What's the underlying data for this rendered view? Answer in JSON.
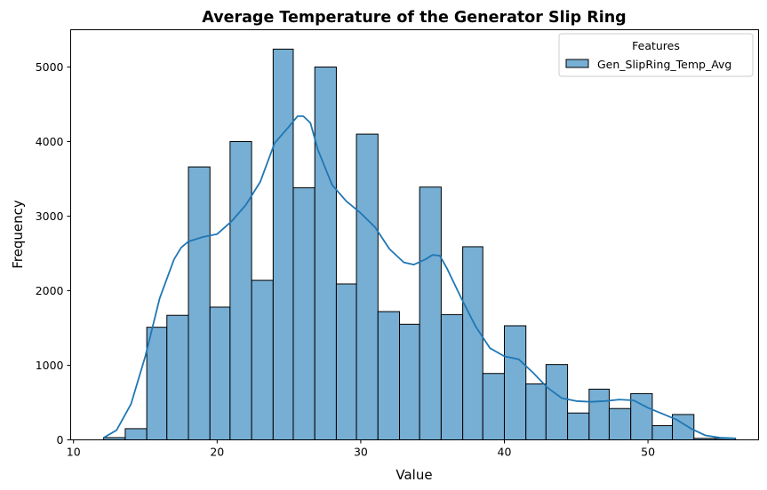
{
  "chart_data": {
    "type": "histogram",
    "title": "Average Temperature of the Generator Slip Ring",
    "xlabel": "Value",
    "ylabel": "Frequency",
    "xlim": [
      9.8,
      57.7
    ],
    "ylim": [
      0,
      5500
    ],
    "xticks": [
      10,
      20,
      30,
      40,
      50
    ],
    "yticks": [
      0,
      1000,
      2000,
      3000,
      4000,
      5000
    ],
    "grid": false,
    "legend": {
      "title": "Features",
      "position": "top-right"
    },
    "series": [
      {
        "name": "Gen_SlipRing_Temp_Avg",
        "color": "#1f77b4",
        "bar_fill": "#77aed4",
        "bins": [
          {
            "x0": 12.1,
            "x1": 13.6,
            "value": 30
          },
          {
            "x0": 13.6,
            "x1": 15.1,
            "value": 150
          },
          {
            "x0": 15.1,
            "x1": 16.5,
            "value": 1510
          },
          {
            "x0": 16.5,
            "x1": 18.0,
            "value": 1670
          },
          {
            "x0": 18.0,
            "x1": 19.5,
            "value": 3660
          },
          {
            "x0": 19.5,
            "x1": 20.9,
            "value": 1780
          },
          {
            "x0": 20.9,
            "x1": 22.4,
            "value": 4000
          },
          {
            "x0": 22.4,
            "x1": 23.9,
            "value": 2140
          },
          {
            "x0": 23.9,
            "x1": 25.3,
            "value": 5240
          },
          {
            "x0": 25.3,
            "x1": 26.8,
            "value": 3380
          },
          {
            "x0": 26.8,
            "x1": 28.3,
            "value": 5000
          },
          {
            "x0": 28.3,
            "x1": 29.7,
            "value": 2090
          },
          {
            "x0": 29.7,
            "x1": 31.2,
            "value": 4100
          },
          {
            "x0": 31.2,
            "x1": 32.7,
            "value": 1720
          },
          {
            "x0": 32.7,
            "x1": 34.1,
            "value": 1550
          },
          {
            "x0": 34.1,
            "x1": 35.6,
            "value": 3390
          },
          {
            "x0": 35.6,
            "x1": 37.1,
            "value": 1680
          },
          {
            "x0": 37.1,
            "x1": 38.5,
            "value": 2590
          },
          {
            "x0": 38.5,
            "x1": 40.0,
            "value": 890
          },
          {
            "x0": 40.0,
            "x1": 41.5,
            "value": 1530
          },
          {
            "x0": 41.5,
            "x1": 42.9,
            "value": 750
          },
          {
            "x0": 42.9,
            "x1": 44.4,
            "value": 1010
          },
          {
            "x0": 44.4,
            "x1": 45.9,
            "value": 360
          },
          {
            "x0": 45.9,
            "x1": 47.3,
            "value": 680
          },
          {
            "x0": 47.3,
            "x1": 48.8,
            "value": 420
          },
          {
            "x0": 48.8,
            "x1": 50.3,
            "value": 620
          },
          {
            "x0": 50.3,
            "x1": 51.7,
            "value": 190
          },
          {
            "x0": 51.7,
            "x1": 53.2,
            "value": 340
          },
          {
            "x0": 53.2,
            "x1": 54.7,
            "value": 20
          },
          {
            "x0": 54.7,
            "x1": 56.1,
            "value": 20
          }
        ],
        "kde": {
          "x": [
            12.1,
            13.0,
            14.0,
            15.0,
            16.0,
            17.0,
            17.5,
            18.0,
            19.0,
            20.0,
            21.0,
            22.0,
            23.0,
            24.0,
            25.0,
            25.6,
            26.0,
            26.5,
            27.0,
            28.0,
            29.0,
            30.0,
            31.0,
            32.0,
            33.0,
            33.7,
            34.5,
            35.0,
            35.5,
            36.0,
            37.0,
            38.0,
            39.0,
            40.0,
            41.0,
            42.0,
            43.0,
            44.0,
            45.0,
            46.0,
            47.0,
            48.0,
            49.0,
            50.0,
            51.0,
            52.0,
            53.0,
            54.0,
            55.0,
            56.1
          ],
          "y": [
            30,
            130,
            480,
            1120,
            1900,
            2420,
            2580,
            2660,
            2720,
            2760,
            2930,
            3150,
            3460,
            3980,
            4200,
            4340,
            4340,
            4250,
            3900,
            3420,
            3200,
            3040,
            2850,
            2560,
            2380,
            2350,
            2420,
            2480,
            2470,
            2300,
            1900,
            1520,
            1230,
            1120,
            1080,
            900,
            700,
            560,
            520,
            510,
            520,
            540,
            530,
            430,
            350,
            270,
            150,
            60,
            30,
            20
          ]
        }
      }
    ]
  }
}
